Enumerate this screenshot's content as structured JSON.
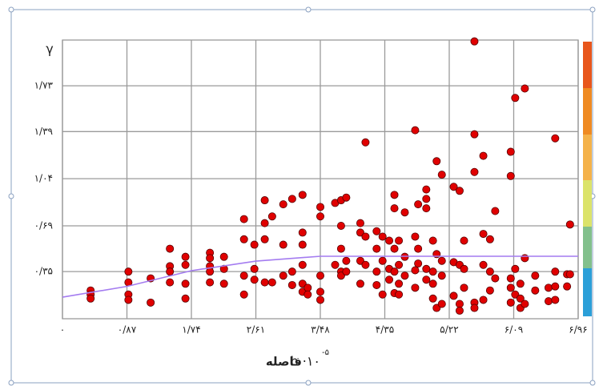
{
  "chart_data": {
    "type": "scatter",
    "ylabel": "γ",
    "xlabel": {
      "symbol": "h ·۱۰",
      "exponent": "-۵",
      "word": "فاصله"
    },
    "xlim": [
      0,
      6.96
    ],
    "ylim": [
      0,
      2.07
    ],
    "xticks": [
      {
        "value": 0,
        "label": "۰"
      },
      {
        "value": 0.87,
        "label": "۰/۸۷"
      },
      {
        "value": 1.74,
        "label": "۱/۷۴"
      },
      {
        "value": 2.61,
        "label": "۲/۶۱"
      },
      {
        "value": 3.48,
        "label": "۳/۴۸"
      },
      {
        "value": 4.35,
        "label": "۴/۳۵"
      },
      {
        "value": 5.22,
        "label": "۵/۲۲"
      },
      {
        "value": 6.09,
        "label": "۶/۰۹"
      },
      {
        "value": 6.96,
        "label": "۶/۹۶"
      }
    ],
    "yticks": [
      {
        "value": 0.35,
        "label": "۰/۳۵"
      },
      {
        "value": 0.69,
        "label": "۰/۶۹"
      },
      {
        "value": 1.04,
        "label": "۱/۰۴"
      },
      {
        "value": 1.39,
        "label": "۱/۳۹"
      },
      {
        "value": 1.73,
        "label": "۱/۷۳"
      }
    ],
    "grid": true,
    "series": [
      {
        "type": "scatter",
        "color": "#e00000",
        "x": [
          0.38,
          0.38,
          0.38,
          0.89,
          0.89,
          0.89,
          0.89,
          1.19,
          1.19,
          1.45,
          1.45,
          1.45,
          1.45,
          1.66,
          1.66,
          1.66,
          1.66,
          1.99,
          1.99,
          1.99,
          1.99,
          1.99,
          2.18,
          2.18,
          2.18,
          2.45,
          2.45,
          2.45,
          2.45,
          2.59,
          2.59,
          2.59,
          2.73,
          2.73,
          2.73,
          2.73,
          2.83,
          2.83,
          2.98,
          2.98,
          2.98,
          3.1,
          3.1,
          3.1,
          3.24,
          3.24,
          3.24,
          3.24,
          3.24,
          3.24,
          3.31,
          3.31,
          3.48,
          3.48,
          3.48,
          3.48,
          3.48,
          3.68,
          3.68,
          3.76,
          3.76,
          3.76,
          3.76,
          3.76,
          3.83,
          3.83,
          3.83,
          4.02,
          4.02,
          4.02,
          4.02,
          4.09,
          4.09,
          4.09,
          4.24,
          4.24,
          4.24,
          4.24,
          4.32,
          4.32,
          4.32,
          4.41,
          4.41,
          4.41,
          4.48,
          4.48,
          4.48,
          4.48,
          4.48,
          4.54,
          4.54,
          4.54,
          4.54,
          4.62,
          4.62,
          4.62,
          4.76,
          4.76,
          4.76,
          4.76,
          4.8,
          4.8,
          4.8,
          4.91,
          4.91,
          4.91,
          4.91,
          4.91,
          5.0,
          5.0,
          5.0,
          5.0,
          5.05,
          5.05,
          5.05,
          5.12,
          5.12,
          5.12,
          5.12,
          5.28,
          5.28,
          5.28,
          5.36,
          5.36,
          5.36,
          5.36,
          5.42,
          5.42,
          5.42,
          5.56,
          5.56,
          5.56,
          5.56,
          5.56,
          5.68,
          5.68,
          5.68,
          5.68,
          5.77,
          5.77,
          5.77,
          5.84,
          5.84,
          6.05,
          6.05,
          6.05,
          6.05,
          6.05,
          6.11,
          6.11,
          6.11,
          6.18,
          6.18,
          6.18,
          6.24,
          6.24,
          6.24,
          6.38,
          6.38,
          6.56,
          6.56,
          6.65,
          6.65,
          6.65,
          6.65,
          6.81,
          6.81,
          6.85,
          6.85
        ],
        "values": [
          0.21,
          0.18,
          0.15,
          0.35,
          0.27,
          0.18,
          0.14,
          0.3,
          0.12,
          0.52,
          0.39,
          0.35,
          0.27,
          0.46,
          0.4,
          0.26,
          0.15,
          0.49,
          0.45,
          0.39,
          0.35,
          0.27,
          0.46,
          0.37,
          0.26,
          0.74,
          0.59,
          0.32,
          0.18,
          0.55,
          0.37,
          0.29,
          0.88,
          0.71,
          0.59,
          0.27,
          0.76,
          0.27,
          0.85,
          0.55,
          0.32,
          0.89,
          0.35,
          0.25,
          0.92,
          0.64,
          0.55,
          0.4,
          0.26,
          0.2,
          0.23,
          0.18,
          0.83,
          0.76,
          0.32,
          0.2,
          0.14,
          0.86,
          0.4,
          0.88,
          0.69,
          0.52,
          0.35,
          0.32,
          0.9,
          0.43,
          0.35,
          0.71,
          0.64,
          0.43,
          0.26,
          1.31,
          0.61,
          0.4,
          0.65,
          0.52,
          0.35,
          0.25,
          0.61,
          0.43,
          0.18,
          0.58,
          0.37,
          0.29,
          0.92,
          0.82,
          0.52,
          0.35,
          0.19,
          0.58,
          0.4,
          0.26,
          0.18,
          0.79,
          0.46,
          0.32,
          1.4,
          0.61,
          0.36,
          0.23,
          0.85,
          0.52,
          0.41,
          0.96,
          0.89,
          0.82,
          0.37,
          0.29,
          0.58,
          0.35,
          0.26,
          0.15,
          1.17,
          0.48,
          0.08,
          1.07,
          0.43,
          0.32,
          0.11,
          0.98,
          0.42,
          0.17,
          0.95,
          0.4,
          0.11,
          0.06,
          0.58,
          0.37,
          0.23,
          2.06,
          1.37,
          1.09,
          0.12,
          0.08,
          1.21,
          0.63,
          0.4,
          0.14,
          0.59,
          0.35,
          0.21,
          0.8,
          0.3,
          1.24,
          1.06,
          0.3,
          0.23,
          0.12,
          1.64,
          0.37,
          0.18,
          0.26,
          0.15,
          0.08,
          1.71,
          0.45,
          0.11,
          0.32,
          0.21,
          0.23,
          0.13,
          1.34,
          0.35,
          0.24,
          0.14,
          0.33,
          0.24,
          0.7,
          0.33
        ]
      },
      {
        "type": "line",
        "color": "#a47cf0",
        "x": [
          0,
          0.87,
          1.74,
          2.61,
          3.48,
          6.96
        ],
        "values": [
          0.16,
          0.24,
          0.357,
          0.428,
          0.464,
          0.464
        ]
      }
    ]
  }
}
